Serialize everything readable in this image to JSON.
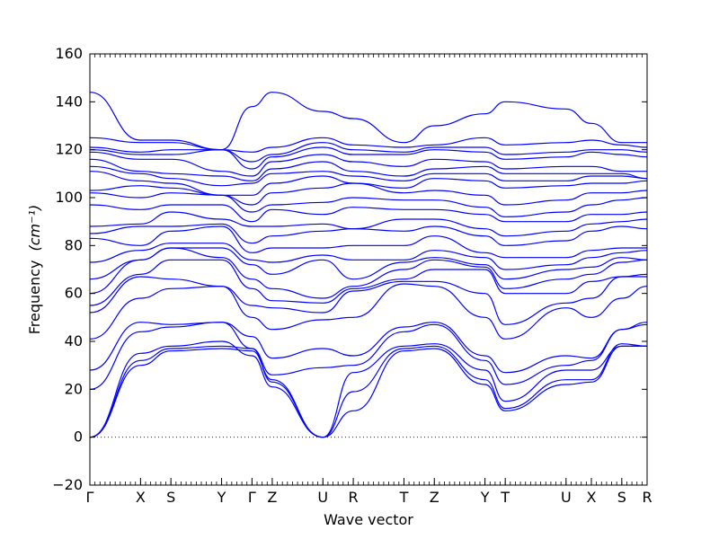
{
  "chart_data": {
    "type": "line",
    "xlabel": "Wave vector",
    "ylabel": "Frequency",
    "ylabel_unit": "(cm⁻¹)",
    "ylim": [
      -20,
      160
    ],
    "y_ticks": [
      -20,
      0,
      20,
      40,
      60,
      80,
      100,
      120,
      140,
      160
    ],
    "x_ticks": [
      {
        "label": "Γ",
        "pos": 0.0
      },
      {
        "label": "X",
        "pos": 0.5
      },
      {
        "label": "S",
        "pos": 0.8
      },
      {
        "label": "Y",
        "pos": 1.3
      },
      {
        "label": "Γ",
        "pos": 1.6
      },
      {
        "label": "Z",
        "pos": 1.8
      },
      {
        "label": "U",
        "pos": 2.3
      },
      {
        "label": "R",
        "pos": 2.6
      },
      {
        "label": "T",
        "pos": 3.1
      },
      {
        "label": "Z",
        "pos": 3.4
      },
      {
        "label": "Y",
        "pos": 3.9
      },
      {
        "label": "T",
        "pos": 4.1
      },
      {
        "label": "U",
        "pos": 4.7
      },
      {
        "label": "X",
        "pos": 4.95
      },
      {
        "label": "S",
        "pos": 5.25
      },
      {
        "label": "R",
        "pos": 5.5
      }
    ],
    "zero_line": true,
    "line_color": "#0000ff",
    "series": [
      {
        "values": [
          0,
          30,
          36,
          37,
          36,
          24,
          0,
          11,
          36,
          37,
          22,
          11,
          22,
          23,
          38,
          38,
          37
        ]
      },
      {
        "values": [
          0,
          32,
          37,
          38,
          37,
          23,
          0,
          19,
          37,
          38,
          24,
          12,
          24,
          24,
          39,
          38,
          37
        ]
      },
      {
        "values": [
          0,
          35,
          38,
          40,
          34,
          21,
          0,
          27,
          38,
          39,
          28,
          15,
          28,
          28,
          38,
          38,
          37
        ]
      },
      {
        "values": [
          20,
          44,
          46,
          48,
          37,
          26,
          29,
          30,
          44,
          47,
          32,
          22,
          30,
          32,
          45,
          47,
          47
        ]
      },
      {
        "values": [
          28,
          48,
          47,
          48,
          42,
          33,
          37,
          34,
          46,
          48,
          34,
          27,
          34,
          33,
          45,
          48,
          47
        ]
      },
      {
        "values": [
          41,
          58,
          62,
          63,
          50,
          45,
          49,
          50,
          64,
          63,
          50,
          41,
          54,
          50,
          58,
          63,
          64
        ]
      },
      {
        "values": [
          52,
          67,
          66,
          63,
          55,
          54,
          52,
          61,
          65,
          65,
          60,
          47,
          56,
          58,
          67,
          67,
          64
        ]
      },
      {
        "values": [
          55,
          68,
          74,
          74,
          62,
          57,
          56,
          62,
          66,
          70,
          70,
          60,
          60,
          65,
          67,
          68,
          64
        ]
      },
      {
        "values": [
          60,
          74,
          79,
          75,
          66,
          62,
          58,
          63,
          70,
          74,
          71,
          62,
          66,
          68,
          73,
          74,
          74
        ]
      },
      {
        "values": [
          66,
          74,
          79,
          79,
          72,
          68,
          74,
          66,
          73,
          75,
          72,
          66,
          70,
          71,
          75,
          74,
          73
        ]
      },
      {
        "values": [
          73,
          78,
          81,
          81,
          74,
          73,
          76,
          74,
          74,
          78,
          75,
          70,
          72,
          75,
          77,
          78,
          79
        ]
      },
      {
        "values": [
          83,
          80,
          86,
          88,
          77,
          79,
          79,
          80,
          80,
          84,
          77,
          75,
          75,
          78,
          79,
          79,
          79
        ]
      },
      {
        "values": [
          85,
          88,
          88,
          89,
          81,
          84,
          86,
          87,
          86,
          88,
          84,
          80,
          82,
          86,
          88,
          87,
          88
        ]
      },
      {
        "values": [
          88,
          89,
          94,
          91,
          88,
          88,
          89,
          87,
          91,
          91,
          87,
          84,
          86,
          89,
          90,
          91,
          88
        ]
      },
      {
        "values": [
          97,
          95,
          97,
          97,
          90,
          95,
          93,
          96,
          95,
          95,
          93,
          90,
          90,
          93,
          93,
          94,
          92
        ]
      },
      {
        "values": [
          102,
          100,
          102,
          101,
          94,
          97,
          98,
          100,
          99,
          99,
          96,
          92,
          94,
          97,
          99,
          100,
          103
        ]
      },
      {
        "values": [
          103,
          105,
          104,
          101,
          97,
          102,
          104,
          106,
          102,
          103,
          101,
          97,
          99,
          102,
          102,
          103,
          104
        ]
      },
      {
        "values": [
          111,
          107,
          106,
          101,
          101,
          106,
          109,
          106,
          104,
          108,
          107,
          104,
          105,
          106,
          106,
          107,
          106
        ]
      },
      {
        "values": [
          113,
          110,
          108,
          105,
          106,
          110,
          111,
          109,
          107,
          110,
          110,
          107,
          107,
          109,
          109,
          108,
          107
        ]
      },
      {
        "values": [
          116,
          111,
          110,
          109,
          107,
          112,
          115,
          111,
          109,
          112,
          113,
          110,
          110,
          110,
          110,
          108,
          109
        ]
      },
      {
        "values": [
          119,
          116,
          116,
          111,
          109,
          115,
          118,
          115,
          113,
          116,
          115,
          112,
          113,
          113,
          111,
          111,
          109
        ]
      },
      {
        "values": [
          120,
          118,
          118,
          120,
          112,
          117,
          121,
          118,
          118,
          120,
          119,
          116,
          117,
          119,
          118,
          117,
          117
        ]
      },
      {
        "values": [
          121,
          119,
          120,
          120,
          115,
          118,
          123,
          120,
          119,
          121,
          121,
          118,
          119,
          120,
          120,
          119,
          119
        ]
      },
      {
        "values": [
          125,
          123,
          123,
          120,
          119,
          121,
          125,
          122,
          121,
          122,
          125,
          122,
          123,
          124,
          122,
          121,
          120
        ]
      },
      {
        "values": [
          144,
          124,
          124,
          120,
          138,
          144,
          136,
          133,
          123,
          130,
          135,
          140,
          137,
          131,
          123,
          123,
          120
        ]
      }
    ]
  }
}
